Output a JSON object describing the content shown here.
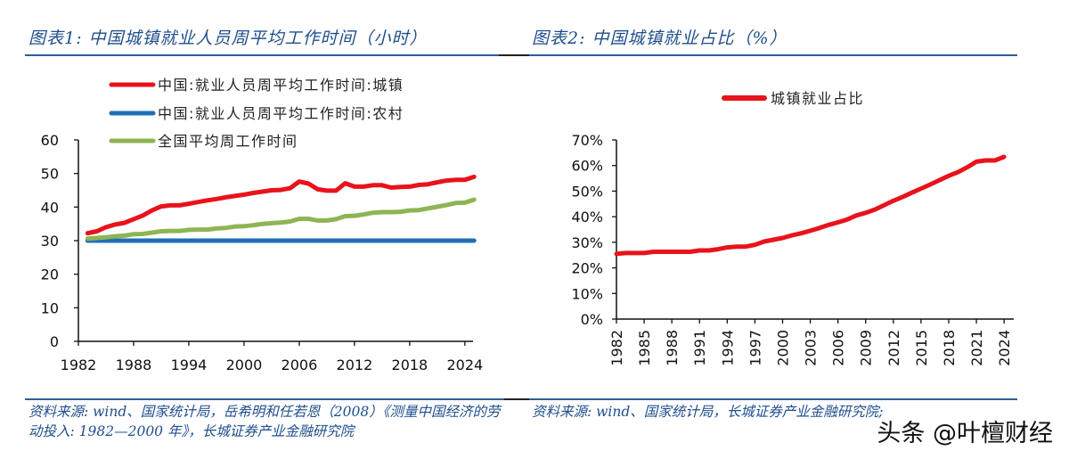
{
  "figure1": {
    "title": "图表1:  中国城镇就业人员周平均工作时间（小时）",
    "source": "资料来源: wind、国家统计局，岳希明和任若恩（2008）《测量中国经济的劳动投入: 1982—2000 年》，长城证券产业金融研究院"
  },
  "figure2": {
    "title": "图表2:  中国城镇就业占比（%）",
    "source": "资料来源: wind、国家统计局，长城证券产业金融研究院;"
  },
  "watermark": "头条 @叶檀财经",
  "chart_data": [
    {
      "type": "line",
      "title": "中国城镇就业人员周平均工作时间（小时）",
      "xlabel": "",
      "ylabel": "",
      "ylim": [
        0,
        60
      ],
      "yticks": [
        "0",
        "10",
        "20",
        "30",
        "40",
        "50",
        "60"
      ],
      "yticks_values": [
        0,
        10,
        20,
        30,
        40,
        50,
        60
      ],
      "xlim": [
        1982,
        2026
      ],
      "xticks": [
        "1982",
        "1988",
        "1994",
        "2000",
        "2006",
        "2012",
        "2018",
        "2024"
      ],
      "xticks_values": [
        1982,
        1988,
        1994,
        2000,
        2006,
        2012,
        2018,
        2024
      ],
      "grid": false,
      "legend_position": "top-left",
      "x": [
        1983,
        1984,
        1985,
        1986,
        1987,
        1988,
        1989,
        1990,
        1991,
        1992,
        1993,
        1994,
        1995,
        1996,
        1997,
        1998,
        1999,
        2000,
        2001,
        2002,
        2003,
        2004,
        2005,
        2006,
        2007,
        2008,
        2009,
        2010,
        2011,
        2012,
        2013,
        2014,
        2015,
        2016,
        2017,
        2018,
        2019,
        2020,
        2021,
        2022,
        2023,
        2024,
        2025
      ],
      "series": [
        {
          "name": "中国:就业人员周平均工作时间:城镇",
          "color": "#e8131b",
          "values": [
            32.2,
            32.8,
            34.0,
            34.8,
            35.3,
            36.4,
            37.5,
            39.0,
            40.2,
            40.5,
            40.5,
            41.0,
            41.5,
            42.0,
            42.4,
            42.9,
            43.3,
            43.7,
            44.2,
            44.6,
            45.0,
            45.1,
            45.6,
            47.6,
            47.0,
            45.3,
            44.9,
            44.9,
            47.1,
            46.1,
            46.1,
            46.5,
            46.5,
            45.8,
            46.0,
            46.1,
            46.6,
            46.8,
            47.4,
            47.9,
            48.1,
            48.1,
            49.0
          ]
        },
        {
          "name": "中国:就业人员周平均工作时间:农村",
          "color": "#1f6fb8",
          "values": [
            30,
            30,
            30,
            30,
            30,
            30,
            30,
            30,
            30,
            30,
            30,
            30,
            30,
            30,
            30,
            30,
            30,
            30,
            30,
            30,
            30,
            30,
            30,
            30,
            30,
            30,
            30,
            30,
            30,
            30,
            30,
            30,
            30,
            30,
            30,
            30,
            30,
            30,
            30,
            30,
            30,
            30,
            30
          ]
        },
        {
          "name": "全国平均周工作时间",
          "color": "#8db554",
          "values": [
            30.6,
            30.8,
            31.0,
            31.3,
            31.5,
            31.9,
            32.0,
            32.4,
            32.8,
            32.9,
            32.9,
            33.2,
            33.3,
            33.3,
            33.6,
            33.8,
            34.2,
            34.3,
            34.6,
            35.0,
            35.2,
            35.4,
            35.7,
            36.5,
            36.5,
            36.0,
            36.0,
            36.4,
            37.3,
            37.4,
            37.8,
            38.3,
            38.5,
            38.5,
            38.6,
            39.0,
            39.1,
            39.6,
            40.1,
            40.6,
            41.2,
            41.3,
            42.2
          ]
        }
      ]
    },
    {
      "type": "line",
      "title": "中国城镇就业占比（%）",
      "xlabel": "",
      "ylabel": "",
      "ylim": [
        0,
        70
      ],
      "yticks": [
        "0%",
        "10%",
        "20%",
        "30%",
        "40%",
        "50%",
        "60%",
        "70%"
      ],
      "yticks_values": [
        0,
        10,
        20,
        30,
        40,
        50,
        60,
        70
      ],
      "xlim": [
        1982,
        2024
      ],
      "xticks": [
        "1982",
        "1985",
        "1988",
        "1991",
        "1994",
        "1997",
        "2000",
        "2003",
        "2006",
        "2009",
        "2012",
        "2015",
        "2018",
        "2021",
        "2024"
      ],
      "xticks_values": [
        1982,
        1985,
        1988,
        1991,
        1994,
        1997,
        2000,
        2003,
        2006,
        2009,
        2012,
        2015,
        2018,
        2021,
        2024
      ],
      "grid": false,
      "legend_position": "top-center",
      "x": [
        1982,
        1983,
        1984,
        1985,
        1986,
        1987,
        1988,
        1989,
        1990,
        1991,
        1992,
        1993,
        1994,
        1995,
        1996,
        1997,
        1998,
        1999,
        2000,
        2001,
        2002,
        2003,
        2004,
        2005,
        2006,
        2007,
        2008,
        2009,
        2010,
        2011,
        2012,
        2013,
        2014,
        2015,
        2016,
        2017,
        2018,
        2019,
        2020,
        2021,
        2022,
        2023,
        2024
      ],
      "series": [
        {
          "name": "城镇就业占比",
          "color": "#e8131b",
          "values": [
            25.5,
            25.8,
            25.8,
            25.8,
            26.3,
            26.3,
            26.3,
            26.3,
            26.3,
            26.8,
            26.8,
            27.3,
            28.0,
            28.3,
            28.3,
            29.0,
            30.3,
            31.0,
            31.7,
            32.7,
            33.5,
            34.5,
            35.6,
            36.8,
            37.8,
            38.9,
            40.5,
            41.5,
            42.8,
            44.5,
            46.2,
            47.7,
            49.4,
            51.0,
            52.6,
            54.3,
            56.0,
            57.4,
            59.3,
            61.5,
            62.0,
            62.0,
            63.4
          ]
        }
      ]
    }
  ]
}
